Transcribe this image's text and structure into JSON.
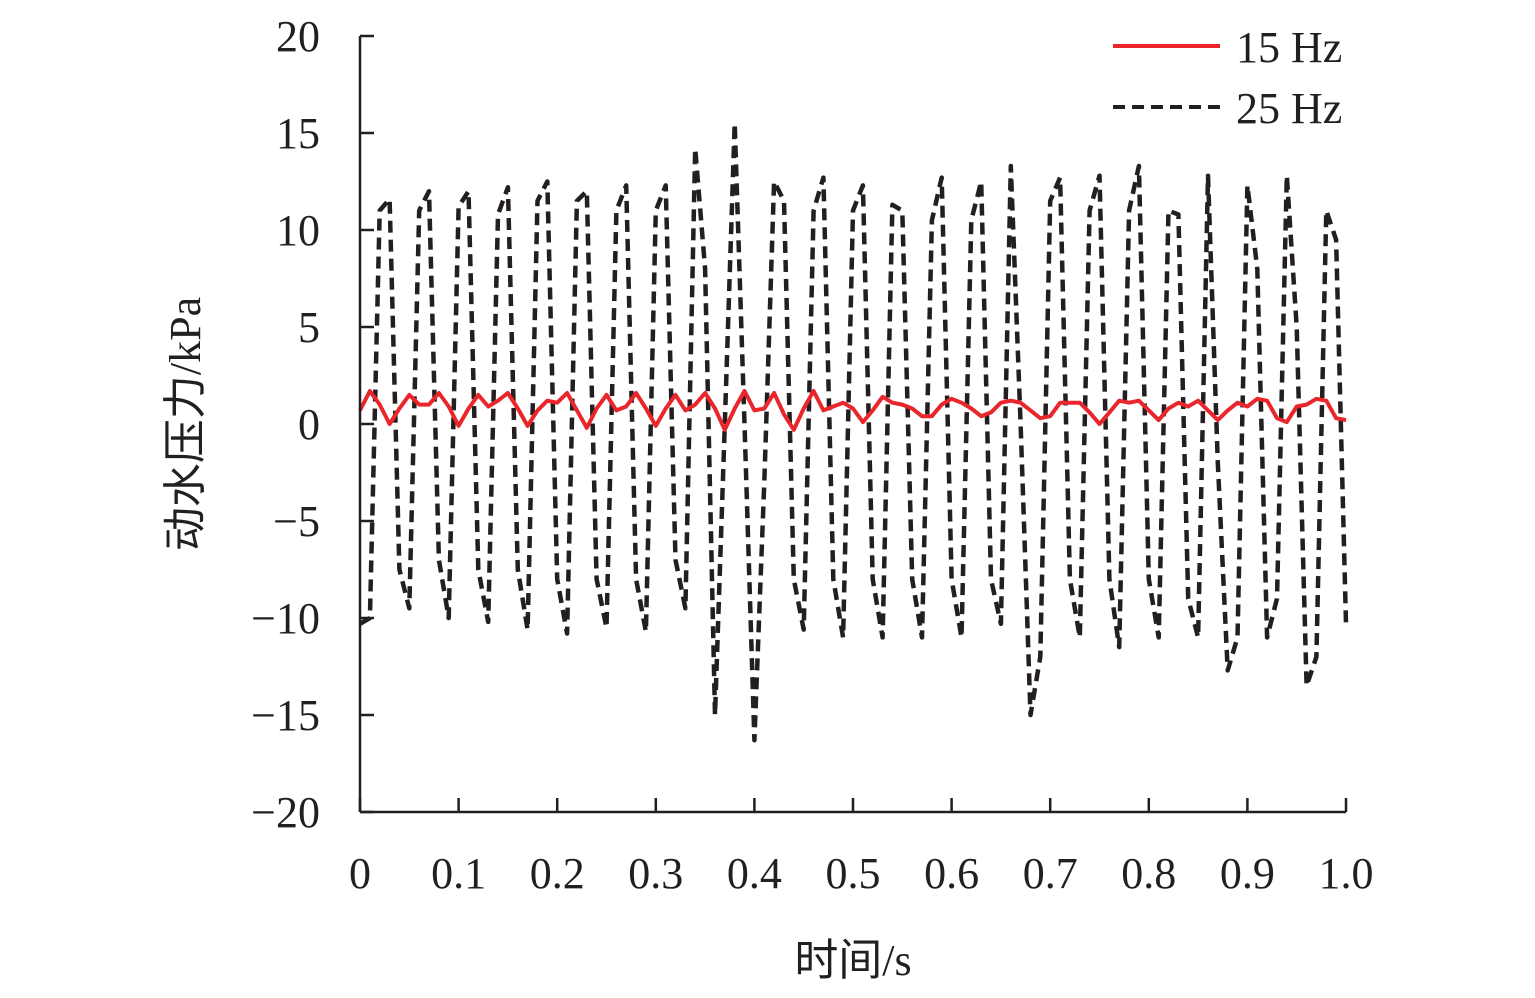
{
  "chart_data": {
    "type": "line",
    "title": "",
    "xlabel": "时间/s",
    "ylabel": "动水压力/kPa",
    "xlim": [
      0,
      1.0
    ],
    "ylim": [
      -20,
      20
    ],
    "xticks": [
      "0",
      "0.1",
      "0.2",
      "0.3",
      "0.4",
      "0.5",
      "0.6",
      "0.7",
      "0.8",
      "0.9",
      "1.0"
    ],
    "xtick_values": [
      0,
      0.1,
      0.2,
      0.3,
      0.4,
      0.5,
      0.6,
      0.7,
      0.8,
      0.9,
      1.0
    ],
    "yticks": [
      "20",
      "15",
      "10",
      "5",
      "0",
      "−5",
      "−10",
      "−15",
      "−20"
    ],
    "ytick_values": [
      20,
      15,
      10,
      5,
      0,
      -5,
      -10,
      -15,
      -20
    ],
    "grid": false,
    "legend_position": "top-right",
    "x_step": 0.01,
    "series": [
      {
        "name": "15 Hz",
        "color": "#e8262b",
        "style": "solid",
        "values": [
          0.7,
          1.7,
          1.0,
          0.0,
          0.8,
          1.5,
          1.0,
          1.0,
          1.6,
          0.9,
          -0.1,
          0.8,
          1.5,
          0.9,
          1.2,
          1.6,
          0.8,
          -0.1,
          0.7,
          1.2,
          1.1,
          1.6,
          0.7,
          -0.2,
          0.8,
          1.5,
          0.7,
          0.9,
          1.6,
          0.8,
          -0.1,
          0.8,
          1.5,
          0.7,
          1.0,
          1.6,
          0.8,
          -0.3,
          0.8,
          1.7,
          0.7,
          0.8,
          1.6,
          0.5,
          -0.3,
          0.8,
          1.7,
          0.7,
          0.9,
          1.1,
          0.8,
          0.1,
          0.7,
          1.4,
          1.1,
          1.0,
          0.8,
          0.4,
          0.4,
          1.0,
          1.3,
          1.1,
          0.8,
          0.4,
          0.6,
          1.1,
          1.2,
          1.1,
          0.7,
          0.3,
          0.4,
          1.1,
          1.1,
          1.1,
          0.6,
          0.0,
          0.6,
          1.2,
          1.1,
          1.2,
          0.7,
          0.2,
          0.8,
          1.1,
          0.9,
          1.2,
          0.7,
          0.2,
          0.7,
          1.1,
          0.9,
          1.3,
          1.2,
          0.3,
          0.1,
          0.9,
          1.0,
          1.3,
          1.2,
          0.3,
          0.2
        ]
      },
      {
        "name": "25 Hz",
        "color": "#231f20",
        "style": "dashed",
        "values": [
          -10.3,
          -10.0,
          11.0,
          11.6,
          -7.5,
          -9.5,
          11.0,
          12.0,
          -7.0,
          -10.0,
          11.2,
          12.0,
          -7.5,
          -10.2,
          10.8,
          12.2,
          -7.5,
          -10.6,
          11.5,
          12.5,
          -8.0,
          -10.8,
          11.5,
          12.0,
          -8.0,
          -10.5,
          11.0,
          12.3,
          -8.0,
          -10.7,
          11.0,
          12.3,
          -7.0,
          -9.5,
          14.2,
          8.0,
          -15.0,
          0.0,
          15.5,
          0.0,
          -16.3,
          -3.0,
          12.5,
          11.5,
          -8.0,
          -10.6,
          11.0,
          12.7,
          -8.0,
          -11.0,
          11.0,
          12.3,
          -8.0,
          -11.0,
          11.3,
          11.0,
          -8.0,
          -11.0,
          10.5,
          12.7,
          -8.0,
          -11.0,
          10.5,
          12.5,
          -8.0,
          -10.3,
          13.3,
          0.0,
          -15.0,
          -12.0,
          11.5,
          12.7,
          -8.0,
          -11.0,
          11.0,
          12.8,
          -8.0,
          -11.5,
          11.0,
          13.3,
          -8.0,
          -11.0,
          11.0,
          10.8,
          -9.0,
          -11.0,
          12.8,
          -2.0,
          -12.7,
          -11.0,
          12.3,
          8.0,
          -11.0,
          -9.0,
          12.8,
          5.0,
          -13.5,
          -12.0,
          11.0,
          9.5,
          -10.3
        ]
      }
    ]
  }
}
